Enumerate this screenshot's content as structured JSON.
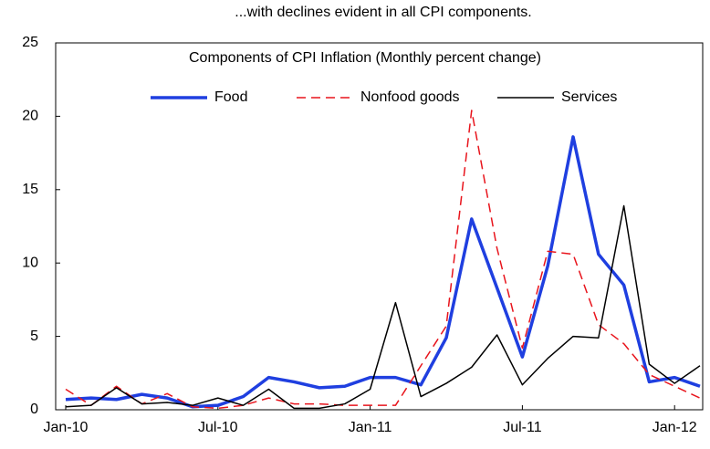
{
  "chart_data": {
    "type": "line",
    "title": "...with declines evident in all CPI components.",
    "subtitle": "Components of CPI Inflation (Monthly percent change)",
    "categories": [
      "Jan-10",
      null,
      null,
      null,
      null,
      null,
      "Jul-10",
      null,
      null,
      null,
      null,
      null,
      "Jan-11",
      null,
      null,
      null,
      null,
      null,
      "Jul-11",
      null,
      null,
      null,
      null,
      null,
      "Jan-12",
      null
    ],
    "series": [
      {
        "name": "Food",
        "color": "#1f3fe0",
        "dash": "solid",
        "width": 3.5,
        "values": [
          0.7,
          0.8,
          0.7,
          1.05,
          0.8,
          0.2,
          0.3,
          0.9,
          2.2,
          1.9,
          1.5,
          1.6,
          2.2,
          2.2,
          1.7,
          4.9,
          13,
          8.3,
          3.6,
          9.8,
          18.6,
          10.6,
          8.5,
          1.9,
          2.2,
          1.6
        ]
      },
      {
        "name": "Nonfood goods",
        "color": "#e8141c",
        "dash": "dashed",
        "width": 1.5,
        "values": [
          1.4,
          0.3,
          1.6,
          0.4,
          1.1,
          0.2,
          0.1,
          0.3,
          0.8,
          0.4,
          0.4,
          0.3,
          0.3,
          0.3,
          3.0,
          5.7,
          20.4,
          11,
          4.2,
          10.8,
          10.6,
          5.8,
          4.5,
          2.4,
          1.6,
          0.8
        ]
      },
      {
        "name": "Services",
        "color": "#000000",
        "dash": "solid",
        "width": 1.5,
        "values": [
          0.2,
          0.3,
          1.5,
          0.4,
          0.5,
          0.3,
          0.8,
          0.3,
          1.4,
          0.1,
          0.1,
          0.4,
          1.4,
          7.3,
          0.9,
          1.8,
          2.9,
          5.1,
          1.7,
          3.5,
          5.0,
          4.9,
          13.9,
          3.1,
          1.8,
          3.0
        ]
      }
    ],
    "ylim": [
      0,
      25
    ],
    "yticks": [
      0,
      5,
      10,
      15,
      20,
      25
    ],
    "grid": false,
    "legend": "top"
  }
}
